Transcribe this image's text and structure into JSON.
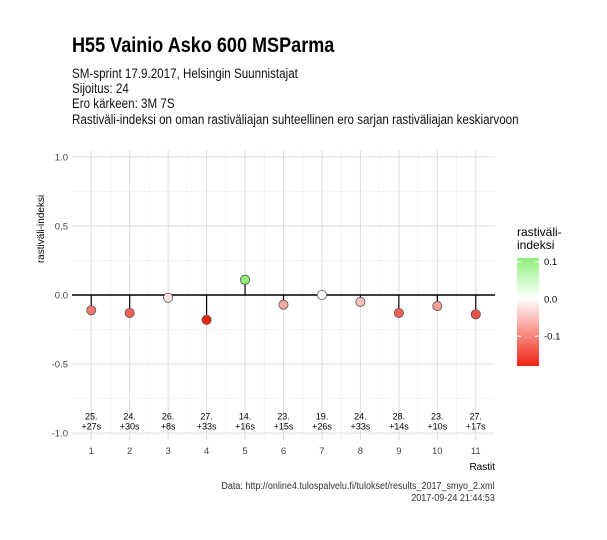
{
  "header": {
    "title": "H55 Vainio Asko 600 MSParma",
    "subtitle_lines": [
      "SM-sprint 17.9.2017, Helsingin Suunnistajat",
      "Sijoitus: 24",
      "Ero kärkeen: 3M 7S",
      "Rastiväli-indeksi on oman rastiväliajan suhteellinen ero sarjan rastiväliajan keskiarvoon"
    ]
  },
  "caption": {
    "source": "Data: http://online4.tulospalvelu.fi/tulokset/results_2017_smyo_2.xml",
    "timestamp": "2017-09-24 21:44:53"
  },
  "chart_data": {
    "type": "scatter",
    "title": "H55 Vainio Asko 600 MSParma",
    "xlabel": "Rastit",
    "ylabel": "rastiväli-indeksi",
    "x": [
      1,
      2,
      3,
      4,
      5,
      6,
      7,
      8,
      9,
      10,
      11
    ],
    "y": [
      -0.11,
      -0.13,
      -0.02,
      -0.18,
      0.11,
      -0.07,
      0.0,
      -0.05,
      -0.13,
      -0.08,
      -0.14
    ],
    "point_labels": [
      [
        "25.",
        "+27s"
      ],
      [
        "24.",
        "+30s"
      ],
      [
        "26.",
        "+8s"
      ],
      [
        "27.",
        "+33s"
      ],
      [
        "14.",
        "+16s"
      ],
      [
        "23.",
        "+15s"
      ],
      [
        "19.",
        "+26s"
      ],
      [
        "24.",
        "+33s"
      ],
      [
        "28.",
        "+14s"
      ],
      [
        "23.",
        "+10s"
      ],
      [
        "27.",
        "+17s"
      ]
    ],
    "xticks": [
      "1",
      "2",
      "3",
      "4",
      "5",
      "6",
      "7",
      "8",
      "9",
      "10",
      "11"
    ],
    "yticks": [
      "1.0",
      "0.5",
      "0.0",
      "-0.5",
      "-1.0"
    ],
    "ytick_values": [
      1.0,
      0.5,
      0.0,
      -0.5,
      -1.0
    ],
    "xlim": [
      0.5,
      11.5
    ],
    "ylim": [
      -1.05,
      1.05
    ],
    "grid": true,
    "legend": {
      "title_lines": [
        "rastiväli-",
        "indeksi"
      ],
      "tick_labels": [
        "0.1",
        "0.0",
        "-0.1"
      ],
      "tick_values": [
        0.1,
        0.0,
        -0.1
      ],
      "range": [
        -0.18,
        0.11
      ],
      "colors": {
        "low": "#ee2211",
        "mid": "#ffffff",
        "high": "#90f07a"
      },
      "placement": "right"
    }
  }
}
